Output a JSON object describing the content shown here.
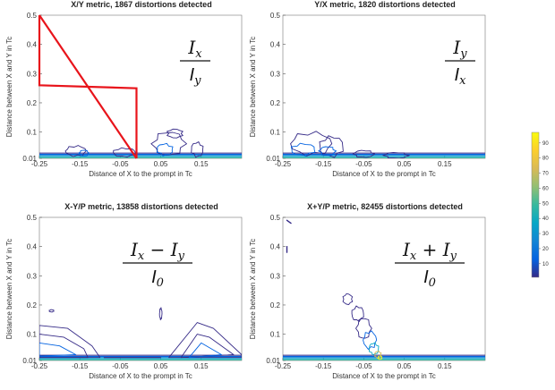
{
  "colorbar": {
    "min": 1,
    "max": 97,
    "ticks": [
      "90",
      "80",
      "70",
      "60",
      "50",
      "40",
      "30",
      "20",
      "10"
    ],
    "colormap": "parula",
    "stops": [
      "#352a87",
      "#0363e1",
      "#1485d4",
      "#06a7c6",
      "#38b99e",
      "#92bf73",
      "#d9ba56",
      "#fcce2e",
      "#f9fb0e"
    ]
  },
  "chart_data": [
    {
      "type": "contour",
      "title": "X/Y metric, 1867 distortions detected",
      "xlabel": "Distance of X  to the prompt in Tc",
      "ylabel": "Distance between X and Y in Tc",
      "xlim": [
        -0.25,
        0.25
      ],
      "ylim": [
        0.01,
        0.5
      ],
      "xticks": [
        "-0.25",
        "-0.15",
        "-0.05",
        "0.05",
        "0.15"
      ],
      "yticks": [
        "0.5",
        "0.4",
        "0.3",
        "0.2",
        "0.1",
        "0.01"
      ],
      "formula": {
        "num_base": "I",
        "num_sub": "x",
        "op": "",
        "num_base2": "",
        "num_sub2": "",
        "den_base": "I",
        "den_sub": "y"
      },
      "region": {
        "color": "#e8141b",
        "points": [
          [
            -0.25,
            0.5
          ],
          [
            -0.25,
            0.26
          ],
          [
            -0.01,
            0.25
          ],
          [
            -0.01,
            0.01
          ]
        ]
      },
      "contour_regions": [
        {
          "x": [
            -0.19,
            -0.12
          ],
          "y": [
            0.01,
            0.06
          ]
        },
        {
          "x": [
            -0.07,
            0.01
          ],
          "y": [
            0.01,
            0.05
          ]
        },
        {
          "x": [
            0.03,
            0.14
          ],
          "y": [
            0.01,
            0.11
          ]
        },
        {
          "x": [
            0.12,
            0.16
          ],
          "y": [
            0.01,
            0.07
          ]
        }
      ]
    },
    {
      "type": "contour",
      "title": "Y/X metric, 1820 distortions detected",
      "xlabel": "Distance of X  to the prompt in Tc",
      "ylabel": "Distance between X and Y in Tc",
      "xlim": [
        -0.25,
        0.25
      ],
      "ylim": [
        0.01,
        0.5
      ],
      "xticks": [
        "-0.25",
        "-0.15",
        "-0.05",
        "0.05",
        "0.15"
      ],
      "yticks": [
        "0.5",
        "0.4",
        "0.3",
        "0.2",
        "0.1",
        "0.01"
      ],
      "formula": {
        "num_base": "I",
        "num_sub": "y",
        "op": "",
        "num_base2": "",
        "num_sub2": "",
        "den_base": "I",
        "den_sub": "x"
      },
      "contour_regions": [
        {
          "x": [
            -0.24,
            -0.1
          ],
          "y": [
            0.01,
            0.11
          ]
        },
        {
          "x": [
            -0.08,
            -0.02
          ],
          "y": [
            0.01,
            0.04
          ]
        },
        {
          "x": [
            0.0,
            0.08
          ],
          "y": [
            0.01,
            0.03
          ]
        }
      ]
    },
    {
      "type": "contour",
      "title": "X-Y/P metric, 13858 distortions detected",
      "xlabel": "Distance of X  to the prompt in Tc",
      "ylabel": "Distance between X and Y in Tc",
      "xlim": [
        -0.25,
        0.25
      ],
      "ylim": [
        0.01,
        0.5
      ],
      "xticks": [
        "-0.25",
        "-0.15",
        "-0.05",
        "0.05",
        "0.15"
      ],
      "yticks": [
        "0.5",
        "0.4",
        "0.3",
        "0.2",
        "0.1",
        "0.01"
      ],
      "formula": {
        "num_base": "I",
        "num_sub": "x",
        "op": "−",
        "num_base2": "I",
        "num_sub2": "y",
        "den_base": "I",
        "den_sub": "0"
      },
      "contour_regions": [
        {
          "x": [
            -0.25,
            -0.1
          ],
          "y": [
            0.01,
            0.13
          ]
        },
        {
          "x": [
            0.07,
            0.25
          ],
          "y": [
            0.01,
            0.14
          ]
        }
      ]
    },
    {
      "type": "contour",
      "title": "X+Y/P metric, 82455 distortions detected",
      "xlabel": "Distance of X  to the prompt in Tc",
      "ylabel": "Distance between X and Y in Tc",
      "xlim": [
        -0.25,
        0.25
      ],
      "ylim": [
        0.01,
        0.5
      ],
      "xticks": [
        "-0.25",
        "-0.15",
        "-0.05",
        "0.05",
        "0.15"
      ],
      "yticks": [
        "0.5",
        "0.4",
        "0.3",
        "0.2",
        "0.1",
        "0.01"
      ],
      "formula": {
        "num_base": "I",
        "num_sub": "x",
        "op": "+",
        "num_base2": "I",
        "num_sub2": "y",
        "den_base": "I",
        "den_sub": "0"
      },
      "contour_regions": [
        {
          "x": [
            -0.24,
            -0.23
          ],
          "y": [
            0.47,
            0.49
          ]
        },
        {
          "x": [
            -0.11,
            -0.01
          ],
          "y": [
            0.01,
            0.24
          ]
        }
      ]
    }
  ]
}
